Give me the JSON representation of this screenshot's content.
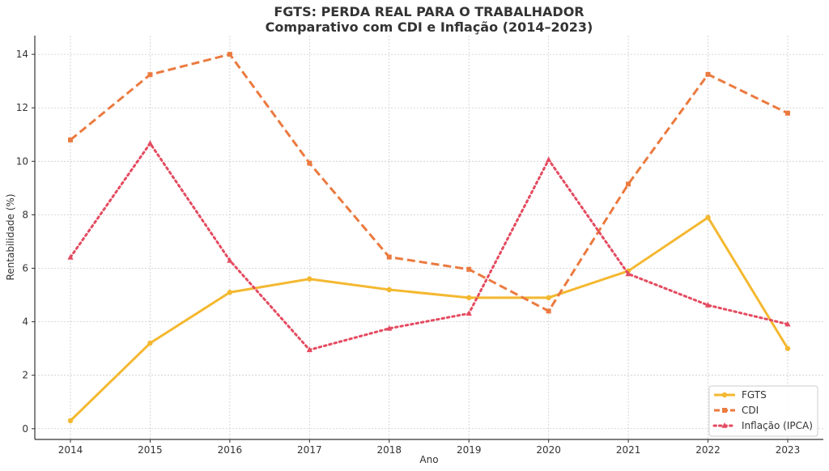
{
  "chart_data": {
    "type": "line",
    "title": "FGTS: PERDA REAL PARA O TRABALHADOR",
    "subtitle": "Comparativo com CDI e Inflação (2014–2023)",
    "xlabel": "Ano",
    "ylabel": "Rentabilidade (%)",
    "x": [
      2014,
      2015,
      2016,
      2017,
      2018,
      2019,
      2020,
      2021,
      2022,
      2023
    ],
    "x_tick_labels": [
      "2014",
      "2015",
      "2016",
      "2017",
      "2018",
      "2019",
      "2020",
      "2021",
      "2022",
      "2023"
    ],
    "ylim": [
      -0.4,
      14.7
    ],
    "y_ticks": [
      0,
      2,
      4,
      6,
      8,
      10,
      12,
      14
    ],
    "y_tick_labels": [
      "0",
      "2",
      "4",
      "6",
      "8",
      "10",
      "12",
      "14"
    ],
    "grid": true,
    "legend_position": "bottom-right",
    "series": [
      {
        "name": "FGTS",
        "color": "#f4b830",
        "style": "solid",
        "marker": "circle",
        "values": [
          0.3,
          3.2,
          5.1,
          5.6,
          5.2,
          4.9,
          4.9,
          5.9,
          7.9,
          3.0
        ]
      },
      {
        "name": "CDI",
        "color": "#eb7a3f",
        "style": "dashed",
        "marker": "square",
        "values": [
          10.8,
          13.24,
          14.0,
          9.93,
          6.42,
          5.96,
          4.4,
          9.15,
          13.25,
          11.8
        ]
      },
      {
        "name": "Inflação (IPCA)",
        "color": "#e44b60",
        "style": "dotted",
        "marker": "triangle",
        "values": [
          6.41,
          10.67,
          6.29,
          2.95,
          3.75,
          4.31,
          10.06,
          5.79,
          4.62,
          3.91
        ]
      }
    ]
  }
}
